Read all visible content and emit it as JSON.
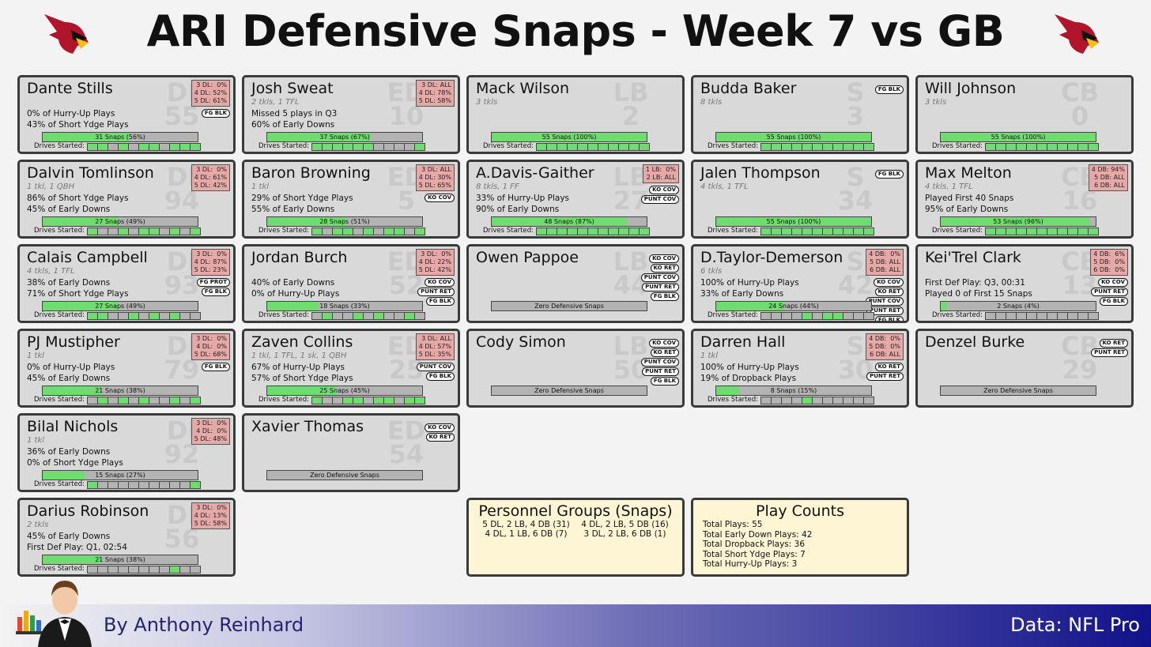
{
  "header": {
    "title": "ARI Defensive Snaps - Week 7 vs GB"
  },
  "labels": {
    "drives": "Drives Started:"
  },
  "columns": [
    [
      {
        "name": "Dante Stills",
        "pos": "DI",
        "number": "55",
        "lines": [
          "0% of Hurry-Up Plays",
          "43% of Short Ydge Plays"
        ],
        "dl": [
          "3 DL:  0%",
          "4 DL: 52%",
          "5 DL: 61%"
        ],
        "tags": [
          "FG BLK"
        ],
        "snaps": {
          "value": 56,
          "label": "31 Snaps (56%)"
        },
        "drives": [
          1,
          1,
          0,
          1,
          0,
          1,
          1,
          0,
          1,
          1,
          1
        ]
      },
      {
        "name": "Dalvin Tomlinson",
        "pos": "DI",
        "number": "94",
        "stats": "1 tkl, 1 QBH",
        "lines": [
          "86% of Short Ydge Plays",
          "45% of Early Downs"
        ],
        "dl": [
          "3 DL:  0%",
          "4 DL: 61%",
          "5 DL: 42%"
        ],
        "snaps": {
          "value": 49,
          "label": "27 Snaps (49%)"
        },
        "drives": [
          1,
          0,
          0,
          1,
          0,
          1,
          1,
          0,
          1,
          0,
          1
        ]
      },
      {
        "name": "Calais Campbell",
        "pos": "DI",
        "number": "93",
        "stats": "4 tkls, 1 TFL",
        "lines": [
          "38% of Early Downs",
          "71% of Short Ydge Plays"
        ],
        "dl": [
          "3 DL:  0%",
          "4 DL: 87%",
          "5 DL: 23%"
        ],
        "tags": [
          "FG PROT",
          "FG BLK"
        ],
        "snaps": {
          "value": 49,
          "label": "27 Snaps (49%)"
        },
        "drives": [
          1,
          1,
          0,
          0,
          1,
          0,
          1,
          0,
          1,
          0,
          0
        ]
      },
      {
        "name": "PJ Mustipher",
        "pos": "DI",
        "number": "79",
        "stats": "1 tkl",
        "lines": [
          "0% of Hurry-Up Plays",
          "45% of Early Downs"
        ],
        "dl": [
          "3 DL:  0%",
          "4 DL:  0%",
          "5 DL: 68%"
        ],
        "tags": [
          "FG BLK"
        ],
        "snaps": {
          "value": 38,
          "label": "21 Snaps (38%)"
        },
        "drives": [
          0,
          1,
          0,
          1,
          0,
          1,
          0,
          0,
          1,
          0,
          1
        ]
      },
      {
        "name": "Bilal Nichols",
        "pos": "DI",
        "number": "92",
        "stats": "1 tkl",
        "lines": [
          "36% of Early Downs",
          "0% of Short Ydge Plays"
        ],
        "dl": [
          "3 DL:  0%",
          "4 DL:  0%",
          "5 DL: 48%"
        ],
        "snaps": {
          "value": 27,
          "label": "15 Snaps (27%)"
        },
        "drives": [
          1,
          0,
          0,
          0,
          0,
          0,
          0,
          0,
          0,
          0,
          1
        ]
      },
      {
        "name": "Darius Robinson",
        "pos": "DI",
        "number": "56",
        "stats": "2 tkls",
        "lines": [
          "45% of Early Downs",
          "First Def Play: Q1, 02:54"
        ],
        "dl": [
          "3 DL:  0%",
          "4 DL: 13%",
          "5 DL: 58%"
        ],
        "snaps": {
          "value": 38,
          "label": "21 Snaps (38%)"
        },
        "drives": [
          0,
          0,
          0,
          0,
          0,
          0,
          0,
          0,
          1,
          0,
          0
        ]
      }
    ],
    [
      {
        "name": "Josh Sweat",
        "pos": "ED",
        "number": "10",
        "stats": "2 tkls, 1 TFL",
        "lines": [
          "Missed 5 plays in Q3",
          "60% of Early Downs"
        ],
        "dl": [
          "3 DL: ALL",
          "4 DL: 78%",
          "5 DL: 58%"
        ],
        "snaps": {
          "value": 67,
          "label": "37 Snaps (67%)"
        },
        "drives": [
          1,
          1,
          1,
          1,
          1,
          1,
          0,
          0,
          0,
          0,
          1
        ]
      },
      {
        "name": "Baron Browning",
        "pos": "ED",
        "number": "5",
        "stats": "1 tkl",
        "lines": [
          "29% of Short Ydge Plays",
          "55% of Early Downs"
        ],
        "dl": [
          "3 DL: ALL",
          "4 DL: 30%",
          "5 DL: 65%"
        ],
        "tags": [
          "KO COV"
        ],
        "snaps": {
          "value": 51,
          "label": "28 Snaps (51%)"
        },
        "drives": [
          1,
          0,
          1,
          1,
          0,
          1,
          0,
          1,
          1,
          0,
          1
        ]
      },
      {
        "name": "Jordan Burch",
        "pos": "ED",
        "number": "52",
        "lines": [
          "40% of Early Downs",
          "0% of Hurry-Up Plays"
        ],
        "dl": [
          "3 DL:  0%",
          "4 DL: 22%",
          "5 DL: 42%"
        ],
        "tags": [
          "KO COV",
          "PUNT RET",
          "FG BLK"
        ],
        "snaps": {
          "value": 33,
          "label": "18 Snaps (33%)"
        },
        "drives": [
          0,
          1,
          0,
          0,
          1,
          0,
          1,
          0,
          0,
          1,
          0
        ]
      },
      {
        "name": "Zaven Collins",
        "pos": "ED",
        "number": "25",
        "stats": "1 tkl, 1 TFL, 1 sk, 1 QBH",
        "lines": [
          "67% of Hurry-Up Plays",
          "57% of Short Ydge Plays"
        ],
        "dl": [
          "3 DL: ALL",
          "4 DL: 57%",
          "5 DL: 35%"
        ],
        "tags": [
          "PUNT COV",
          "FG BLK"
        ],
        "snaps": {
          "value": 45,
          "label": "25 Snaps (45%)"
        },
        "drives": [
          1,
          0,
          0,
          1,
          1,
          0,
          1,
          1,
          0,
          1,
          1
        ]
      },
      {
        "name": "Xavier Thomas",
        "pos": "ED",
        "number": "54",
        "tags": [
          "KO COV",
          "KO RET"
        ],
        "snaps": {
          "value": 0,
          "label": "Zero Defensive Snaps"
        }
      }
    ],
    [
      {
        "name": "Mack Wilson",
        "pos": "LB",
        "number": "2",
        "stats": "3 tkls",
        "snaps": {
          "value": 100,
          "label": "55 Snaps (100%)"
        },
        "drives": [
          1,
          1,
          1,
          1,
          1,
          1,
          1,
          1,
          1,
          1,
          1
        ]
      },
      {
        "name": "A.Davis-Gaither",
        "pos": "LB",
        "number": "27",
        "stats": "8 tkls, 1 FF",
        "lines": [
          "33% of Hurry-Up Plays",
          "90% of Early Downs"
        ],
        "dl": [
          "1 LB:  0%",
          "2 LB: ALL"
        ],
        "tags": [
          "KO COV",
          "PUNT COV"
        ],
        "snaps": {
          "value": 87,
          "label": "48 Snaps (87%)"
        },
        "drives": [
          1,
          1,
          1,
          1,
          1,
          1,
          1,
          1,
          1,
          1,
          1
        ]
      },
      {
        "name": "Owen Pappoe",
        "pos": "LB",
        "number": "44",
        "tags": [
          "KO COV",
          "KO RET",
          "PUNT COV",
          "PUNT RET",
          "FG BLK"
        ],
        "snaps": {
          "value": 0,
          "label": "Zero Defensive Snaps"
        }
      },
      {
        "name": "Cody Simon",
        "pos": "LB",
        "number": "50",
        "tags": [
          "KO COV",
          "KO RET",
          "PUNT COV",
          "PUNT RET",
          "FG BLK"
        ],
        "snaps": {
          "value": 0,
          "label": "Zero Defensive Snaps"
        }
      }
    ],
    [
      {
        "name": "Budda Baker",
        "pos": "S",
        "number": "3",
        "stats": "8 tkls",
        "tags": [
          "FG BLK"
        ],
        "snaps": {
          "value": 100,
          "label": "55 Snaps (100%)"
        },
        "drives": [
          1,
          1,
          1,
          1,
          1,
          1,
          1,
          1,
          1,
          1,
          1
        ]
      },
      {
        "name": "Jalen Thompson",
        "pos": "S",
        "number": "34",
        "stats": "4 tkls, 1 TFL",
        "tags": [
          "FG BLK"
        ],
        "snaps": {
          "value": 100,
          "label": "55 Snaps (100%)"
        },
        "drives": [
          1,
          1,
          1,
          1,
          1,
          1,
          1,
          1,
          1,
          1,
          1
        ]
      },
      {
        "name": "D.Taylor-Demerson",
        "pos": "S",
        "number": "42",
        "stats": "6 tkls",
        "lines": [
          "100% of Hurry-Up Plays",
          "33% of Early Downs"
        ],
        "dl": [
          "4 DB:  0%",
          "5 DB: ALL",
          "6 DB: ALL"
        ],
        "tags": [
          "KO COV",
          "KO RET",
          "PUNT COV",
          "PUNT RET",
          "FG BLK"
        ],
        "snaps": {
          "value": 44,
          "label": "24 Snaps (44%)"
        },
        "drives": [
          0,
          0,
          0,
          0,
          1,
          0,
          1,
          1,
          0,
          0,
          0
        ]
      },
      {
        "name": "Darren Hall",
        "pos": "S",
        "number": "30",
        "stats": "1 tkl",
        "lines": [
          "100% of Hurry-Up Plays",
          "19% of Dropback Plays"
        ],
        "dl": [
          "4 DB:  0%",
          "5 DB:  0%",
          "6 DB: ALL"
        ],
        "tags": [
          "KO RET",
          "PUNT RET"
        ],
        "snaps": {
          "value": 15,
          "label": "8 Snaps (15%)"
        },
        "drives": [
          0,
          0,
          0,
          0,
          1,
          0,
          0,
          0,
          0,
          0,
          0
        ]
      }
    ],
    [
      {
        "name": "Will Johnson",
        "pos": "CB",
        "number": "0",
        "stats": "3 tkls",
        "snaps": {
          "value": 100,
          "label": "55 Snaps (100%)"
        },
        "drives": [
          1,
          1,
          1,
          1,
          1,
          1,
          1,
          1,
          1,
          1,
          1
        ]
      },
      {
        "name": "Max Melton",
        "pos": "CB",
        "number": "16",
        "stats": "4 tkls, 1 TFL",
        "lines": [
          "Played First 40 Snaps",
          "95% of Early Downs"
        ],
        "dl": [
          "4 DB: 94%",
          "5 DB: ALL",
          "6 DB: ALL"
        ],
        "snaps": {
          "value": 96,
          "label": "53 Snaps (96%)"
        },
        "drives": [
          1,
          1,
          1,
          1,
          1,
          1,
          1,
          1,
          1,
          1,
          1
        ]
      },
      {
        "name": "Kei'Trel Clark",
        "pos": "CB",
        "number": "13",
        "lines": [
          "First Def Play: Q3, 00:31",
          "Played 0 of First 15 Snaps"
        ],
        "dl": [
          "4 DB:  6%",
          "5 DB:  0%",
          "6 DB:  0%"
        ],
        "tags": [
          "KO COV",
          "PUNT RET",
          "FG BLK"
        ],
        "snaps": {
          "value": 4,
          "label": "2 Snaps (4%)"
        },
        "drives": [
          0,
          0,
          0,
          0,
          0,
          0,
          0,
          0,
          0,
          0,
          0
        ]
      },
      {
        "name": "Denzel Burke",
        "pos": "CB",
        "number": "29",
        "tags": [
          "KO RET",
          "PUNT RET"
        ],
        "snaps": {
          "value": 0,
          "label": "Zero Defensive Snaps"
        }
      }
    ]
  ],
  "personnel": {
    "title": "Personnel Groups (Snaps)",
    "rows": [
      "5 DL, 2 LB, 4 DB (31)",
      "4 DL, 2 LB, 5 DB (16)",
      "4 DL, 1 LB, 6 DB (7)",
      "3 DL, 2 LB, 6 DB (1)"
    ]
  },
  "play_counts": {
    "title": "Play Counts",
    "rows": [
      "Total Plays: 55",
      "Total Early Down Plays: 42",
      "Total Dropback Plays: 36",
      "Total Short Ydge Plays: 7",
      "Total Hurry-Up Plays: 3"
    ]
  },
  "footer": {
    "author": "By Anthony Reinhard",
    "source": "Data: NFL Pro"
  }
}
